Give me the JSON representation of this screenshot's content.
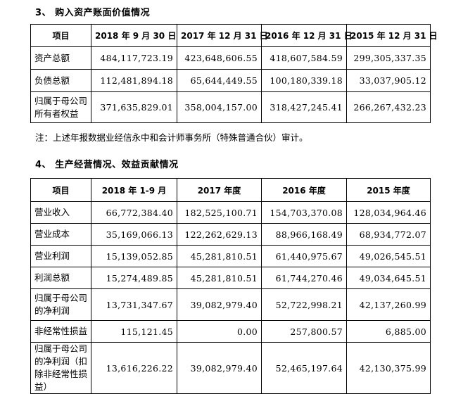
{
  "section1": {
    "title": "3、 购入资产账面价值情况",
    "headers": [
      "项目",
      "2018 年 9 月 30 日",
      "2017 年 12 月 31 日",
      "2016 年 12 月 31 日",
      "2015 年 12 月 31 日"
    ],
    "rows": [
      {
        "label": "资产总额",
        "values": [
          "484,117,723.19",
          "423,648,606.55",
          "418,607,584.59",
          "299,305,337.35"
        ]
      },
      {
        "label": "负债总额",
        "values": [
          "112,481,894.18",
          "65,644,449.55",
          "100,180,339.18",
          "33,037,905.12"
        ]
      },
      {
        "label": "归属于母公司所有者权益",
        "values": [
          "371,635,829.01",
          "358,004,157.00",
          "318,427,245.41",
          "266,267,432.23"
        ]
      }
    ],
    "note": "注：上述年报数据业经信永中和会计师事务所（特殊普通合伙）审计。"
  },
  "section2": {
    "title": "4、 生产经营情况、效益贡献情况",
    "headers": [
      "项目",
      "2018 年 1-9 月",
      "2017 年度",
      "2016 年度",
      "2015 年度"
    ],
    "rows": [
      {
        "label": "营业收入",
        "values": [
          "66,772,384.40",
          "182,525,100.71",
          "154,703,370.08",
          "128,034,964.46"
        ]
      },
      {
        "label": "营业成本",
        "values": [
          "35,169,066.13",
          "122,262,629.13",
          "88,966,168.49",
          "68,934,772.07"
        ]
      },
      {
        "label": "营业利润",
        "values": [
          "15,139,052.85",
          "45,281,810.51",
          "61,440,975.67",
          "49,026,545.51"
        ]
      },
      {
        "label": "利润总额",
        "values": [
          "15,274,489.85",
          "45,281,810.51",
          "61,744,270.46",
          "49,034,645.51"
        ]
      },
      {
        "label": "归属于母公司的净利润",
        "values": [
          "13,731,347.67",
          "39,082,979.40",
          "52,722,998.21",
          "42,137,260.99"
        ]
      },
      {
        "label": "非经常性损益",
        "values": [
          "115,121.45",
          "0.00",
          "257,800.57",
          "6,885.00"
        ]
      },
      {
        "label": "归属于母公司的净利润（扣除非经常性损益）",
        "values": [
          "13,616,226.22",
          "39,082,979.40",
          "52,465,197.64",
          "42,130,375.99"
        ]
      }
    ]
  }
}
